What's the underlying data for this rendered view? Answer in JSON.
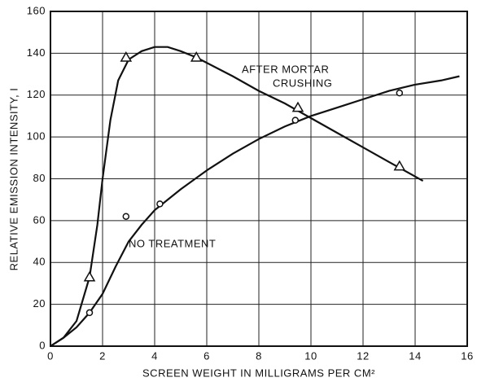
{
  "chart_data": {
    "type": "line",
    "xlabel": "SCREEN WEIGHT IN MILLIGRAMS PER CM²",
    "ylabel": "RELATIVE EMISSION INTENSITY, I",
    "annotations": [
      "AFTER MORTAR",
      "CRUSHING",
      "NO TREATMENT"
    ],
    "xlim": [
      0,
      16
    ],
    "xticks": [
      0,
      2,
      4,
      6,
      8,
      10,
      12,
      14,
      16
    ],
    "ylim": [
      0,
      160
    ],
    "yticks": [
      0,
      20,
      40,
      60,
      80,
      100,
      120,
      140,
      160
    ],
    "grid": true,
    "color": "#111111",
    "series": [
      {
        "marker": "triangle",
        "x": [
          1.5,
          2.9,
          5.6,
          9.5,
          13.4
        ],
        "values": [
          33,
          138,
          138,
          114,
          86
        ],
        "curve_x": [
          0,
          0.5,
          1,
          1.5,
          1.8,
          2,
          2.3,
          2.6,
          3,
          3.5,
          4,
          4.5,
          5,
          5.6,
          7,
          8,
          9,
          10,
          11,
          12,
          13,
          14.3
        ],
        "curve_values": [
          0,
          4,
          12,
          33,
          58,
          80,
          108,
          127,
          137,
          141,
          143,
          143,
          141,
          138,
          129,
          122,
          116,
          109,
          102,
          95,
          88,
          79
        ]
      },
      {
        "marker": "circle",
        "x": [
          1.5,
          2.9,
          4.2,
          9.4,
          13.4
        ],
        "values": [
          16,
          62,
          68,
          108,
          121
        ],
        "curve_x": [
          0,
          0.5,
          1,
          1.5,
          2,
          2.5,
          3,
          3.5,
          4,
          5,
          6,
          7,
          8,
          9,
          10,
          11,
          12,
          13,
          14,
          15,
          15.7
        ],
        "curve_values": [
          0,
          4,
          9,
          16,
          25,
          38,
          50,
          58,
          65,
          75,
          84,
          92,
          99,
          105,
          110,
          114,
          118,
          122,
          125,
          127,
          129
        ]
      }
    ]
  }
}
